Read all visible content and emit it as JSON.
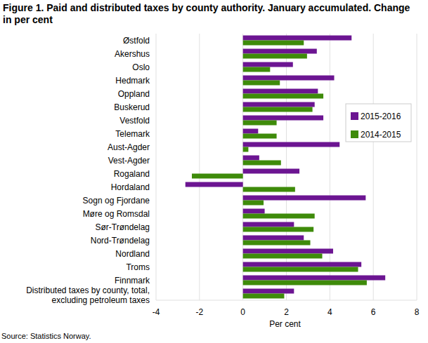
{
  "chart_data": {
    "type": "bar",
    "orientation": "horizontal",
    "title": "Figure 1. Paid and distributed taxes by county authority. January accumulated. Change in per cent",
    "categories": [
      "Østfold",
      "Akershus",
      "Oslo",
      "Hedmark",
      "Oppland",
      "Buskerud",
      "Vestfold",
      "Telemark",
      "Aust-Agder",
      "Vest-Agder",
      "Rogaland",
      "Hordaland",
      "Sogn og Fjordane",
      "Møre og Romsdal",
      "Sør-Trøndelag",
      "Nord-Trøndelag",
      "Nordland",
      "Troms",
      "Finnmark",
      "Distributed taxes by county, total, excluding petroleum taxes"
    ],
    "series": [
      {
        "name": "2015-2016",
        "color": "#6c1592",
        "values": [
          5.0,
          3.4,
          2.3,
          4.2,
          3.45,
          3.3,
          3.7,
          0.7,
          4.45,
          0.75,
          2.6,
          -2.65,
          5.65,
          1.0,
          2.35,
          2.8,
          4.15,
          5.45,
          6.55,
          2.35
        ]
      },
      {
        "name": "2014-2015",
        "color": "#3e8b0a",
        "values": [
          2.8,
          2.95,
          1.25,
          1.7,
          3.7,
          3.2,
          1.55,
          1.55,
          0.25,
          1.75,
          -2.35,
          2.4,
          0.95,
          3.3,
          3.25,
          3.1,
          3.65,
          5.3,
          5.7,
          1.9
        ]
      }
    ],
    "x_label": "Per cent",
    "xlim": [
      -4,
      8
    ],
    "xticks": [
      -4,
      -2,
      0,
      2,
      4,
      6,
      8
    ],
    "grid": true,
    "legend": "upper right",
    "source": "Source: Statistics Norway."
  }
}
